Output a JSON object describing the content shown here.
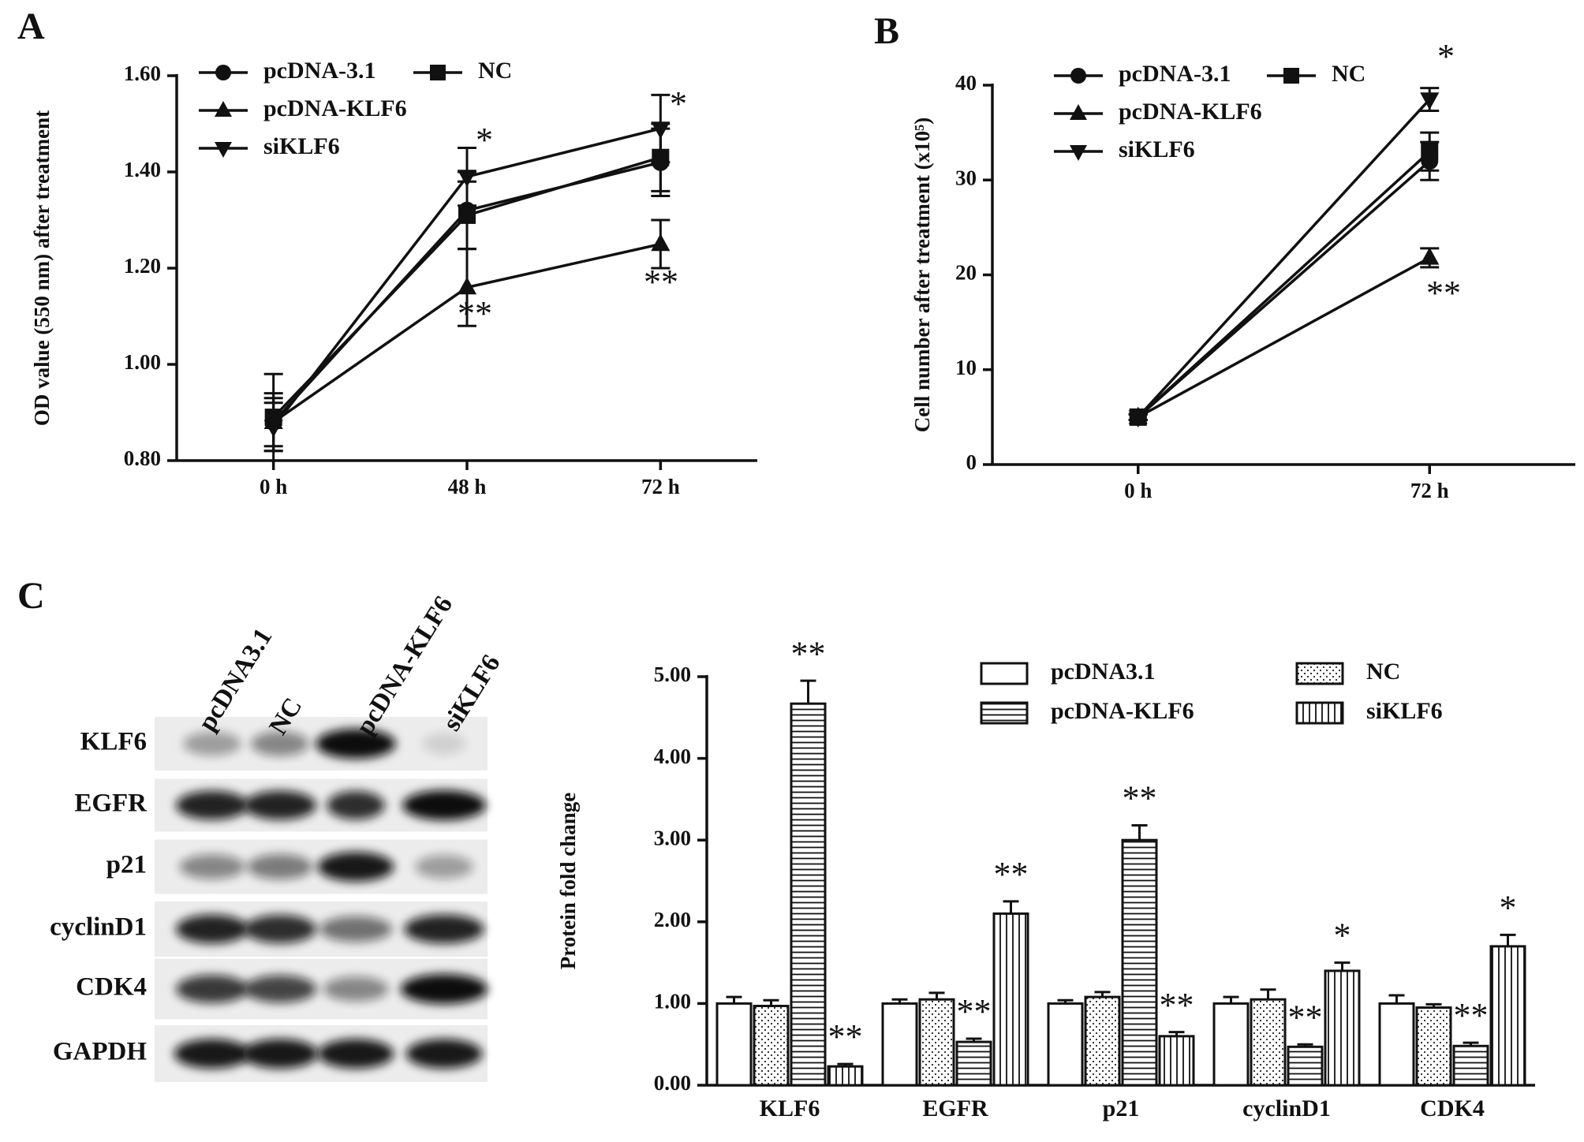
{
  "panel_labels": [
    "A",
    "B",
    "C"
  ],
  "blot": {
    "columns": [
      "pcDNA3.1",
      "NC",
      "pcDNA-KLF6",
      "siKLF6"
    ],
    "rows": [
      "KLF6",
      "EGFR",
      "p21",
      "cyclinD1",
      "CDK4",
      "GAPDH"
    ]
  },
  "chart_data": [
    {
      "type": "line",
      "y_label": "OD value (550 nm) after treatment",
      "categories": [
        "0 h",
        "48 h",
        "72 h"
      ],
      "ylim": [
        0.8,
        1.6
      ],
      "yticks": [
        {
          "value": 0.8,
          "label": "0.80"
        },
        {
          "value": 1.0,
          "label": "1.00"
        },
        {
          "value": 1.2,
          "label": "1.20"
        },
        {
          "value": 1.4,
          "label": "1.40"
        },
        {
          "value": 1.6,
          "label": "1.60"
        }
      ],
      "series": [
        {
          "name": "pcDNA-3.1",
          "color": "#111111",
          "marker": "circle",
          "values": [
            0.88,
            1.32,
            1.42
          ],
          "errors": [
            0.06,
            0.08,
            0.07
          ]
        },
        {
          "name": "NC",
          "color": "#111111",
          "marker": "square",
          "values": [
            0.89,
            1.31,
            1.43
          ],
          "errors": [
            0.09,
            0.07,
            0.07
          ]
        },
        {
          "name": "pcDNA-KLF6",
          "color": "#111111",
          "marker": "triangle-up",
          "values": [
            0.88,
            1.16,
            1.25
          ],
          "errors": [
            0.05,
            0.08,
            0.05
          ]
        },
        {
          "name": "siKLF6",
          "color": "#111111",
          "marker": "triangle-down",
          "values": [
            0.87,
            1.39,
            1.49
          ],
          "errors": [
            0.05,
            0.06,
            0.07
          ]
        }
      ],
      "annotations": [
        "*",
        "*",
        "**",
        "**"
      ]
    },
    {
      "type": "line",
      "y_label": "Cell number after treatment (x10⁵)",
      "categories": [
        "0 h",
        "72 h"
      ],
      "ylim": [
        0,
        40
      ],
      "yticks": [
        0,
        10,
        20,
        30,
        40
      ],
      "series": [
        {
          "name": "pcDNA-3.1",
          "color": "#111111",
          "marker": "circle",
          "values": [
            5,
            32
          ],
          "errors": [
            0.3,
            2
          ]
        },
        {
          "name": "NC",
          "color": "#111111",
          "marker": "square",
          "values": [
            5,
            33
          ],
          "errors": [
            0.3,
            2
          ]
        },
        {
          "name": "pcDNA-KLF6",
          "color": "#111111",
          "marker": "triangle-up",
          "values": [
            5,
            21.8
          ],
          "errors": [
            0.3,
            1
          ]
        },
        {
          "name": "siKLF6",
          "color": "#111111",
          "marker": "triangle-down",
          "values": [
            5,
            38.5
          ],
          "errors": [
            0.3,
            1.2
          ]
        }
      ],
      "annotations": [
        "*",
        "**"
      ]
    },
    {
      "type": "bar",
      "y_label": "Protein fold change",
      "categories": [
        "KLF6",
        "EGFR",
        "p21",
        "cyclinD1",
        "CDK4"
      ],
      "ylim": [
        0,
        5
      ],
      "yticks": [
        {
          "value": 0,
          "label": "0.00"
        },
        {
          "value": 1,
          "label": "1.00"
        },
        {
          "value": 2,
          "label": "2.00"
        },
        {
          "value": 3,
          "label": "3.00"
        },
        {
          "value": 4,
          "label": "4.00"
        },
        {
          "value": 5,
          "label": "5.00"
        }
      ],
      "series": [
        {
          "name": "pcDNA3.1",
          "color": "#ffffff",
          "pattern": "none",
          "values": [
            1.0,
            1.0,
            1.0,
            1.0,
            1.0
          ],
          "errors": [
            0.08,
            0.05,
            0.04,
            0.08,
            0.1
          ]
        },
        {
          "name": "NC",
          "color": "#ffffff",
          "pattern": "dots",
          "values": [
            0.97,
            1.05,
            1.08,
            1.05,
            0.95
          ],
          "errors": [
            0.07,
            0.08,
            0.06,
            0.12,
            0.04
          ]
        },
        {
          "name": "pcDNA-KLF6",
          "color": "#ffffff",
          "pattern": "horizontal",
          "values": [
            4.67,
            0.53,
            3.0,
            0.47,
            0.48
          ],
          "errors": [
            0.28,
            0.04,
            0.18,
            0.03,
            0.04
          ]
        },
        {
          "name": "siKLF6",
          "color": "#ffffff",
          "pattern": "vertical",
          "values": [
            0.23,
            2.1,
            0.6,
            1.4,
            1.7
          ],
          "errors": [
            0.03,
            0.15,
            0.05,
            0.1,
            0.14
          ]
        }
      ],
      "annotations": [
        "**",
        "**",
        "**",
        "**",
        "**",
        "**",
        "**",
        "*",
        "**",
        "*"
      ]
    }
  ]
}
